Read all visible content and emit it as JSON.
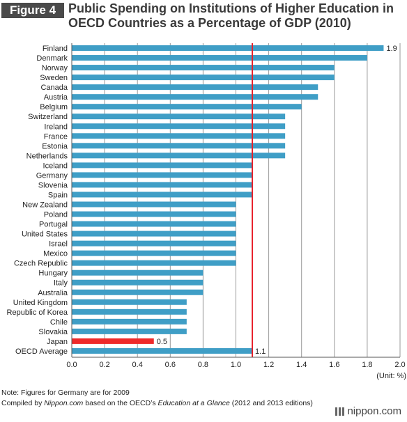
{
  "figure_label": "Figure 4",
  "title_line1": "Public Spending on Institutions of Higher Education in",
  "title_line2": "OECD Countries as a Percentage of GDP (2010)",
  "unit": "(Unit: %)",
  "note": "Note: Figures for Germany are for 2009",
  "credit_prefix": "Compiled by ",
  "credit_site": "Nippon.com",
  "credit_mid": " based on the OECD’s ",
  "credit_book": "Education at a Glance",
  "credit_suffix": " (2012 and 2013 editions)",
  "logo_text": "nippon.com",
  "chart_data": {
    "type": "bar",
    "orientation": "horizontal",
    "categories": [
      "Finland",
      "Denmark",
      "Norway",
      "Sweden",
      "Canada",
      "Austria",
      "Belgium",
      "Switzerland",
      "Ireland",
      "France",
      "Estonia",
      "Netherlands",
      "Iceland",
      "Germany",
      "Slovenia",
      "Spain",
      "New Zealand",
      "Poland",
      "Portugal",
      "United States",
      "Israel",
      "Mexico",
      "Czech Republic",
      "Hungary",
      "Italy",
      "Australia",
      "United Kingdom",
      "Republic of Korea",
      "Chile",
      "Slovakia",
      "Japan",
      "OECD Average"
    ],
    "values": [
      1.9,
      1.8,
      1.6,
      1.6,
      1.5,
      1.5,
      1.4,
      1.3,
      1.3,
      1.3,
      1.3,
      1.3,
      1.1,
      1.1,
      1.1,
      1.1,
      1.0,
      1.0,
      1.0,
      1.0,
      1.0,
      1.0,
      1.0,
      0.8,
      0.8,
      0.8,
      0.7,
      0.7,
      0.7,
      0.7,
      0.5,
      1.1
    ],
    "data_labels": {
      "Finland": "1.9",
      "Japan": "0.5",
      "OECD Average": "1.1"
    },
    "highlight": "Japan",
    "reference_line": 1.1,
    "xlim": [
      0,
      2.0
    ],
    "xticks": [
      "0.0",
      "0.2",
      "0.4",
      "0.6",
      "0.8",
      "1.0",
      "1.2",
      "1.4",
      "1.6",
      "1.8",
      "2.0"
    ],
    "grid": true,
    "colors": {
      "bar": "#3f9ec6",
      "highlight": "#ee2a2a",
      "reference": "#e8202a",
      "grid": "#999999",
      "axis": "#555555"
    }
  }
}
